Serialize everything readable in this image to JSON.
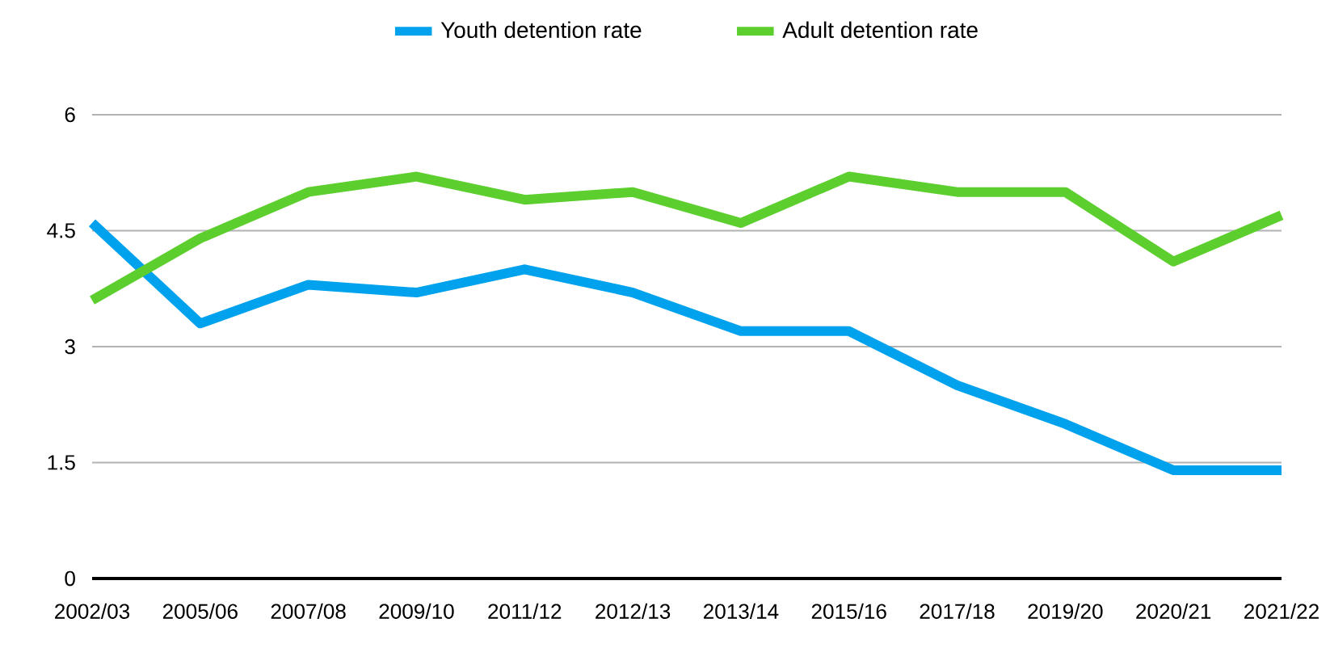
{
  "chart_data": {
    "type": "line",
    "categories": [
      "2002/03",
      "2005/06",
      "2007/08",
      "2009/10",
      "2011/12",
      "2012/13",
      "2013/14",
      "2015/16",
      "2017/18",
      "2019/20",
      "2020/21",
      "2021/22"
    ],
    "series": [
      {
        "name": "Youth detention rate",
        "color": "#00a2ed",
        "values": [
          4.6,
          3.3,
          3.8,
          3.7,
          4.0,
          3.7,
          3.2,
          3.2,
          2.5,
          2.0,
          1.4,
          1.4
        ]
      },
      {
        "name": "Adult detention rate",
        "color": "#5ccf2e",
        "values": [
          3.6,
          4.4,
          5.0,
          5.2,
          4.9,
          5.0,
          4.6,
          5.2,
          5.0,
          5.0,
          4.1,
          4.7
        ]
      }
    ],
    "ylim": [
      0,
      6
    ],
    "yticks": [
      0,
      1.5,
      3,
      4.5,
      6
    ],
    "grid": "y",
    "legend": "top",
    "marker": "none",
    "line_style": "solid"
  }
}
